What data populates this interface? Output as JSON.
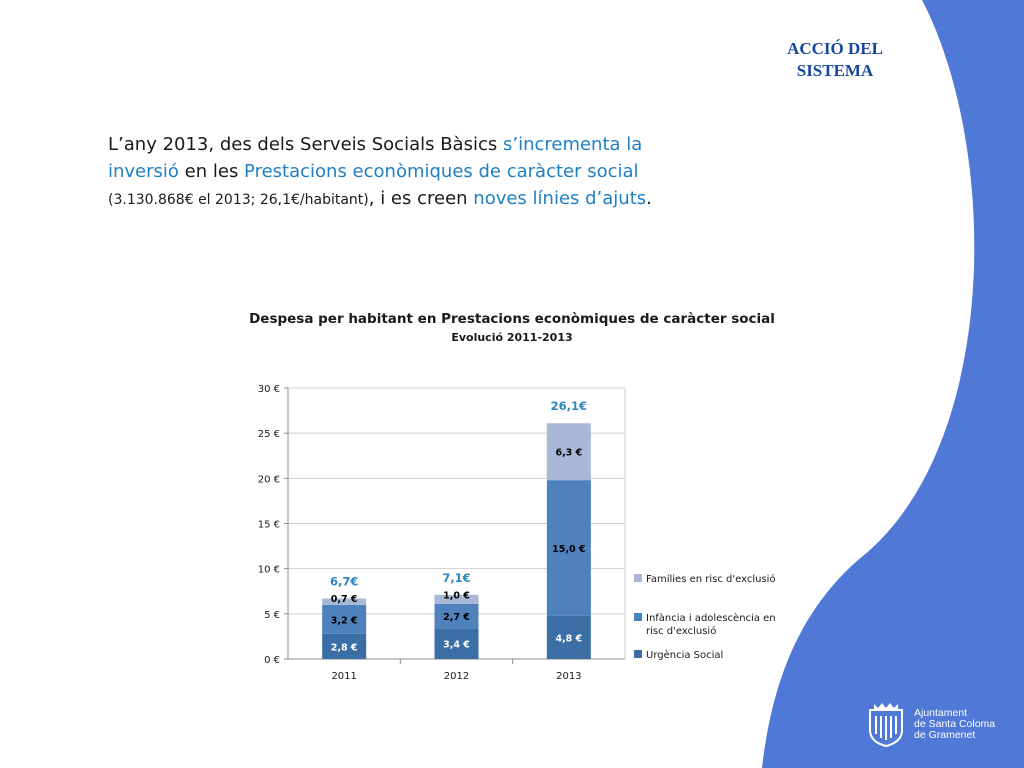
{
  "slide": {
    "section_title_line1": "ACCIÓ DEL",
    "section_title_line2": "SISTEMA",
    "intro": {
      "p1": "L’any 2013, des dels Serveis Socials Bàsics ",
      "p2": "s’incrementa la inversió",
      "p3": " en les ",
      "p4": "Prestacions econòmiques de caràcter social",
      "p5": " ",
      "p6": "(3.130.868€ el 2013; 26,1€/habitant)",
      "p7": ", i es creen ",
      "p8": "noves línies d’ajuts",
      "p9": "."
    },
    "logo": {
      "line1": "Ajuntament",
      "line2": "de Santa Coloma",
      "line3": "de Gramenet"
    },
    "colors": {
      "accent_blue": "#4f78d7",
      "title_blue": "#17479e",
      "highlight_blue": "#1f7fc4"
    }
  },
  "chart_data": {
    "type": "bar",
    "stacked": true,
    "title": "Despesa per habitant en Prestacions econòmiques de caràcter social",
    "subtitle": "Evolució 2011-2013",
    "categories": [
      "2011",
      "2012",
      "2013"
    ],
    "series": [
      {
        "name": "Urgència Social",
        "values": [
          2.8,
          3.4,
          4.8
        ],
        "labels": [
          "2,8 €",
          "3,4 €",
          "4,8 €"
        ],
        "color": "#3c6ea6",
        "label_color": "#ffffff"
      },
      {
        "name": "Infància i adolescència en risc d'exclusió",
        "values": [
          3.2,
          2.7,
          15.0
        ],
        "labels": [
          "3,2 €",
          "2,7 €",
          "15,0 €"
        ],
        "color": "#4f81bd",
        "label_color": "#000000"
      },
      {
        "name": "Famílies en risc d'exclusió",
        "values": [
          0.7,
          1.0,
          6.3
        ],
        "labels": [
          "0,7 €",
          "1,0 €",
          "6,3 €"
        ],
        "color": "#a8b9d8",
        "label_color": "#000000"
      }
    ],
    "totals": [
      6.7,
      7.1,
      26.1
    ],
    "total_labels": [
      "6,7€",
      "7,1€",
      "26,1€"
    ],
    "total_label_color": "#2e86c1",
    "ylim": [
      0,
      30
    ],
    "yticks": [
      0,
      5,
      10,
      15,
      20,
      25,
      30
    ],
    "ytick_labels": [
      "0 €",
      "5 €",
      "10 €",
      "15 €",
      "20 €",
      "25 €",
      "30 €"
    ],
    "grid": true,
    "legend_position": "right"
  }
}
